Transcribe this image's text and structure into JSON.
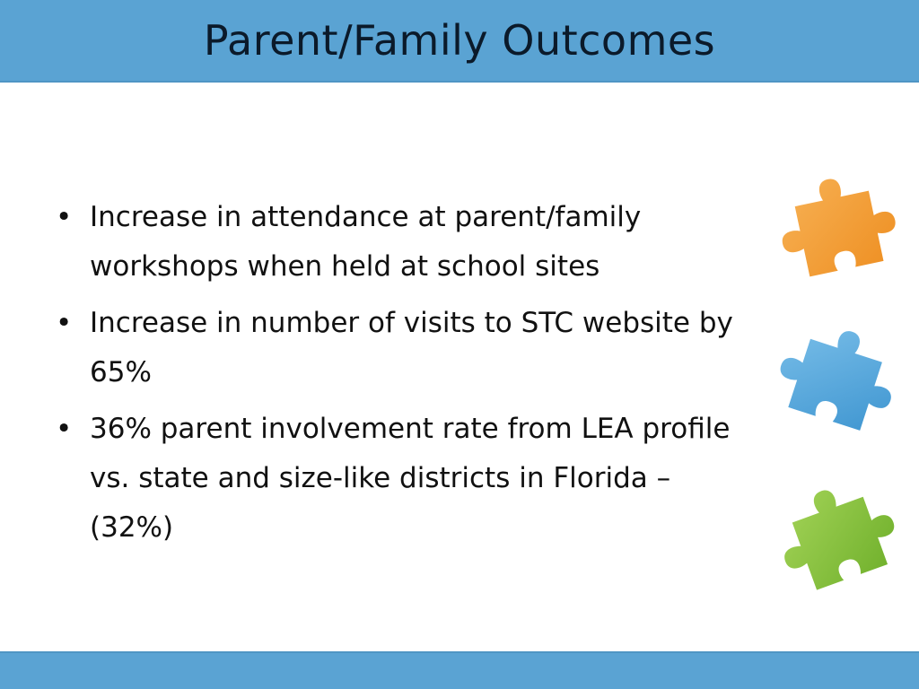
{
  "slide": {
    "title": "Parent/Family Outcomes",
    "bullets": [
      "Increase in attendance at parent/family workshops when held at school sites",
      "Increase in number of visits to STC website by 65%",
      "36% parent involvement rate from LEA profile vs. state and size-like districts in Florida – (32%)"
    ],
    "bullet_glyph": "•"
  },
  "decorations": {
    "puzzle_pieces": [
      {
        "name": "orange-puzzle-piece",
        "color": "#f4a13a"
      },
      {
        "name": "blue-puzzle-piece",
        "color": "#5aaadf"
      },
      {
        "name": "green-puzzle-piece",
        "color": "#8cc43f"
      }
    ]
  },
  "colors": {
    "banner": "#5aa3d3",
    "title_text": "#0b1a2a",
    "body_text": "#111111"
  }
}
